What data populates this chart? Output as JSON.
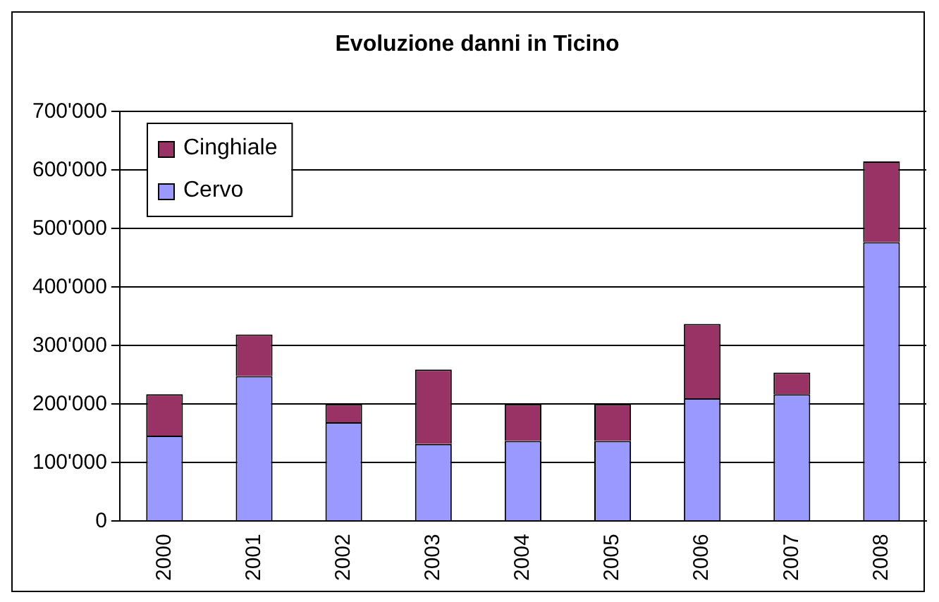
{
  "chart_data": {
    "type": "bar",
    "title": "Evoluzione danni in Ticino",
    "stacked": true,
    "categories": [
      "2000",
      "2001",
      "2002",
      "2003",
      "2004",
      "2005",
      "2006",
      "2007",
      "2008"
    ],
    "series": [
      {
        "name": "Cervo",
        "color": "#9999ff",
        "values": [
          146000,
          248000,
          169000,
          132000,
          137000,
          137000,
          210000,
          217000,
          477000
        ]
      },
      {
        "name": "Cinghiale",
        "color": "#993366",
        "values": [
          71000,
          71000,
          31000,
          127000,
          63000,
          63000,
          127000,
          37000,
          138000
        ]
      }
    ],
    "ylim": [
      0,
      700000
    ],
    "yticks": [
      {
        "value": 0,
        "label": "0"
      },
      {
        "value": 100000,
        "label": "100'000"
      },
      {
        "value": 200000,
        "label": "200'000"
      },
      {
        "value": 300000,
        "label": "300'000"
      },
      {
        "value": 400000,
        "label": "400'000"
      },
      {
        "value": 500000,
        "label": "500'000"
      },
      {
        "value": 600000,
        "label": "600'000"
      },
      {
        "value": 700000,
        "label": "700'000"
      }
    ],
    "grid": "y",
    "legend": "top left"
  }
}
